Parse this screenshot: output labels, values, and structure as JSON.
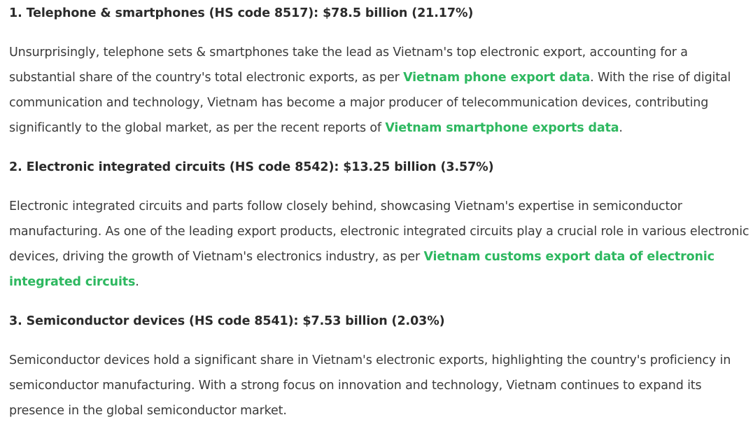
{
  "sections": [
    {
      "heading": "1. Telephone & smartphones (HS code 8517): $78.5 billion (21.17%)",
      "paragraph": {
        "text_1": "Unsurprisingly, telephone sets & smartphones take the lead as Vietnam's top electronic export, accounting for a substantial share of the country's total electronic exports, as per ",
        "link_1": "Vietnam phone export data",
        "text_2": ". With the rise of digital communication and technology, Vietnam has become a major producer of telecommunication devices, contributing significantly to the global market, as per the recent reports of ",
        "link_2": "Vietnam smartphone exports data",
        "text_3": "."
      }
    },
    {
      "heading": "2. Electronic integrated circuits (HS code 8542): $13.25 billion (3.57%)",
      "paragraph": {
        "text_1": "Electronic integrated circuits and parts follow closely behind, showcasing Vietnam's expertise in semiconductor manufacturing. As one of the leading export products, electronic integrated circuits play a crucial role in various electronic devices, driving the growth of Vietnam's electronics industry, as per ",
        "link_1": "Vietnam customs export data of electronic integrated circuits",
        "text_2": "."
      }
    },
    {
      "heading": "3. Semiconductor devices (HS code 8541): $7.53 billion (2.03%)",
      "paragraph": {
        "text_1": "Semiconductor devices hold a significant share in Vietnam's electronic exports, highlighting the country's proficiency in semiconductor manufacturing. With a strong focus on innovation and technology, Vietnam continues to expand its presence in the global semiconductor market."
      }
    }
  ],
  "colors": {
    "link": "#2eb860",
    "text": "#3a3a3a",
    "heading": "#2b2b2b",
    "background": "#ffffff"
  }
}
